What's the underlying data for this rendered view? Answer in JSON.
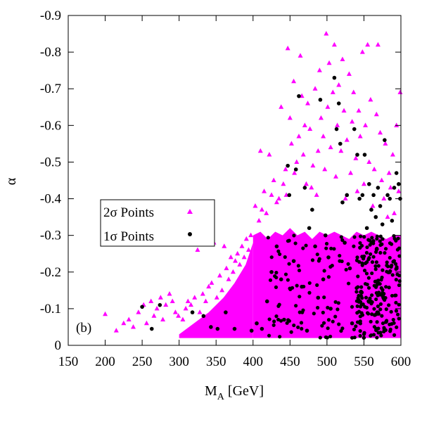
{
  "chart_data": {
    "type": "scatter",
    "title": "",
    "panel_label": "(b)",
    "xlabel": "M",
    "xlabel_sub": "A",
    "xlabel_unit": " [GeV]",
    "ylabel": "α",
    "xlim": [
      150,
      600
    ],
    "ylim": [
      0,
      -0.9
    ],
    "y_axis_inverted": true,
    "grid": false,
    "legend_position": "center-left",
    "x_ticks": [
      150,
      200,
      250,
      300,
      350,
      400,
      450,
      500,
      550,
      600
    ],
    "x_tick_labels": [
      "150",
      "200",
      "250",
      "300",
      "350",
      "400",
      "450",
      "500",
      "550",
      "600"
    ],
    "y_ticks": [
      0,
      -0.1,
      -0.2,
      -0.3,
      -0.4,
      -0.5,
      -0.6,
      -0.7,
      -0.8,
      -0.9
    ],
    "y_tick_labels": [
      "0",
      "-0.1",
      "-0.2",
      "-0.3",
      "-0.4",
      "-0.5",
      "-0.6",
      "-0.7",
      "-0.8",
      "-0.9"
    ],
    "series": [
      {
        "name": "2σ Points",
        "marker": "triangle",
        "color": "#ff00ff",
        "dense_band": {
          "x_range": [
            400,
            600
          ],
          "y_range": [
            -0.02,
            -0.3
          ],
          "note_points": "dense region of many overlapping points"
        },
        "points": [
          [
            200,
            -0.085
          ],
          [
            215,
            -0.04
          ],
          [
            225,
            -0.06
          ],
          [
            232,
            -0.07
          ],
          [
            238,
            -0.05
          ],
          [
            245,
            -0.09
          ],
          [
            252,
            -0.11
          ],
          [
            256,
            -0.06
          ],
          [
            262,
            -0.12
          ],
          [
            266,
            -0.08
          ],
          [
            270,
            -0.1
          ],
          [
            275,
            -0.13
          ],
          [
            278,
            -0.07
          ],
          [
            282,
            -0.11
          ],
          [
            287,
            -0.14
          ],
          [
            291,
            -0.12
          ],
          [
            295,
            -0.09
          ],
          [
            299,
            -0.08
          ],
          [
            305,
            -0.07
          ],
          [
            309,
            -0.1
          ],
          [
            312,
            -0.12
          ],
          [
            316,
            -0.11
          ],
          [
            321,
            -0.13
          ],
          [
            325,
            -0.26
          ],
          [
            328,
            -0.09
          ],
          [
            332,
            -0.14
          ],
          [
            336,
            -0.12
          ],
          [
            340,
            -0.16
          ],
          [
            344,
            -0.17
          ],
          [
            347,
            -0.28
          ],
          [
            351,
            -0.13
          ],
          [
            355,
            -0.19
          ],
          [
            358,
            -0.15
          ],
          [
            361,
            -0.27
          ],
          [
            364,
            -0.21
          ],
          [
            367,
            -0.18
          ],
          [
            370,
            -0.24
          ],
          [
            373,
            -0.2
          ],
          [
            376,
            -0.23
          ],
          [
            379,
            -0.25
          ],
          [
            382,
            -0.22
          ],
          [
            385,
            -0.27
          ],
          [
            388,
            -0.24
          ],
          [
            391,
            -0.29
          ],
          [
            394,
            -0.26
          ],
          [
            397,
            -0.3
          ],
          [
            403,
            -0.38
          ],
          [
            408,
            -0.34
          ],
          [
            410,
            -0.53
          ],
          [
            412,
            -0.37
          ],
          [
            415,
            -0.42
          ],
          [
            418,
            -0.36
          ],
          [
            422,
            -0.52
          ],
          [
            425,
            -0.41
          ],
          [
            428,
            -0.45
          ],
          [
            432,
            -0.39
          ],
          [
            435,
            -0.4
          ],
          [
            438,
            -0.65
          ],
          [
            441,
            -0.44
          ],
          [
            444,
            -0.48
          ],
          [
            445,
            -0.41
          ],
          [
            447,
            -0.81
          ],
          [
            450,
            -0.62
          ],
          [
            452,
            -0.55
          ],
          [
            455,
            -0.72
          ],
          [
            456,
            -0.47
          ],
          [
            459,
            -0.5
          ],
          [
            462,
            -0.57
          ],
          [
            464,
            -0.79
          ],
          [
            466,
            -0.68
          ],
          [
            468,
            -0.52
          ],
          [
            470,
            -0.6
          ],
          [
            472,
            -0.44
          ],
          [
            474,
            -0.66
          ],
          [
            477,
            -0.59
          ],
          [
            479,
            -0.43
          ],
          [
            481,
            -0.49
          ],
          [
            484,
            -0.7
          ],
          [
            486,
            -0.41
          ],
          [
            488,
            -0.53
          ],
          [
            490,
            -0.75
          ],
          [
            492,
            -0.62
          ],
          [
            495,
            -0.57
          ],
          [
            497,
            -0.48
          ],
          [
            499,
            -0.85
          ],
          [
            501,
            -0.65
          ],
          [
            503,
            -0.77
          ],
          [
            505,
            -0.54
          ],
          [
            508,
            -0.69
          ],
          [
            510,
            -0.82
          ],
          [
            512,
            -0.46
          ],
          [
            514,
            -0.6
          ],
          [
            516,
            -0.71
          ],
          [
            519,
            -0.53
          ],
          [
            521,
            -0.78
          ],
          [
            523,
            -0.64
          ],
          [
            525,
            -0.4
          ],
          [
            527,
            -0.56
          ],
          [
            530,
            -0.74
          ],
          [
            532,
            -0.47
          ],
          [
            534,
            -0.61
          ],
          [
            536,
            -0.69
          ],
          [
            539,
            -0.51
          ],
          [
            541,
            -0.42
          ],
          [
            543,
            -0.64
          ],
          [
            545,
            -0.57
          ],
          [
            548,
            -0.8
          ],
          [
            550,
            -0.44
          ],
          [
            552,
            -0.6
          ],
          [
            555,
            -0.82
          ],
          [
            557,
            -0.5
          ],
          [
            559,
            -0.67
          ],
          [
            562,
            -0.38
          ],
          [
            564,
            -0.48
          ],
          [
            567,
            -0.63
          ],
          [
            569,
            -0.82
          ],
          [
            572,
            -0.58
          ],
          [
            574,
            -0.45
          ],
          [
            577,
            -0.4
          ],
          [
            579,
            -0.55
          ],
          [
            582,
            -0.35
          ],
          [
            584,
            -0.47
          ],
          [
            586,
            -0.43
          ],
          [
            589,
            -0.52
          ],
          [
            591,
            -0.36
          ],
          [
            594,
            -0.6
          ],
          [
            597,
            -0.42
          ],
          [
            599,
            -0.69
          ]
        ]
      },
      {
        "name": "1σ Points",
        "marker": "circle",
        "color": "#000000",
        "points": [
          [
            250,
            -0.105
          ],
          [
            263,
            -0.045
          ],
          [
            274,
            -0.11
          ],
          [
            318,
            -0.09
          ],
          [
            333,
            -0.08
          ],
          [
            343,
            -0.05
          ],
          [
            352,
            -0.045
          ],
          [
            363,
            -0.09
          ],
          [
            375,
            -0.045
          ],
          [
            398,
            -0.04
          ],
          [
            405,
            -0.06
          ],
          [
            412,
            -0.045
          ],
          [
            419,
            -0.12
          ],
          [
            425,
            -0.2
          ],
          [
            432,
            -0.27
          ],
          [
            438,
            -0.18
          ],
          [
            442,
            -0.07
          ],
          [
            447,
            -0.49
          ],
          [
            449,
            -0.41
          ],
          [
            455,
            -0.23
          ],
          [
            458,
            -0.48
          ],
          [
            462,
            -0.68
          ],
          [
            466,
            -0.16
          ],
          [
            470,
            -0.43
          ],
          [
            473,
            -0.04
          ],
          [
            476,
            -0.32
          ],
          [
            480,
            -0.37
          ],
          [
            484,
            -0.27
          ],
          [
            488,
            -0.13
          ],
          [
            491,
            -0.67
          ],
          [
            495,
            -0.18
          ],
          [
            498,
            -0.3
          ],
          [
            502,
            -0.24
          ],
          [
            505,
            -0.1
          ],
          [
            510,
            -0.73
          ],
          [
            513,
            -0.59
          ],
          [
            516,
            -0.66
          ],
          [
            518,
            -0.55
          ],
          [
            521,
            -0.39
          ],
          [
            524,
            -0.28
          ],
          [
            527,
            -0.41
          ],
          [
            531,
            -0.21
          ],
          [
            534,
            -0.06
          ],
          [
            537,
            -0.59
          ],
          [
            541,
            -0.52
          ],
          [
            544,
            -0.4
          ],
          [
            548,
            -0.41
          ],
          [
            551,
            -0.52
          ],
          [
            554,
            -0.32
          ],
          [
            557,
            -0.44
          ],
          [
            560,
            -0.37
          ],
          [
            563,
            -0.41
          ],
          [
            566,
            -0.35
          ],
          [
            569,
            -0.43
          ],
          [
            572,
            -0.38
          ],
          [
            575,
            -0.33
          ],
          [
            578,
            -0.56
          ],
          [
            582,
            -0.41
          ],
          [
            585,
            -0.4
          ],
          [
            588,
            -0.34
          ],
          [
            591,
            -0.43
          ],
          [
            594,
            -0.47
          ],
          [
            597,
            -0.44
          ],
          [
            599,
            -0.4
          ]
        ]
      }
    ]
  }
}
